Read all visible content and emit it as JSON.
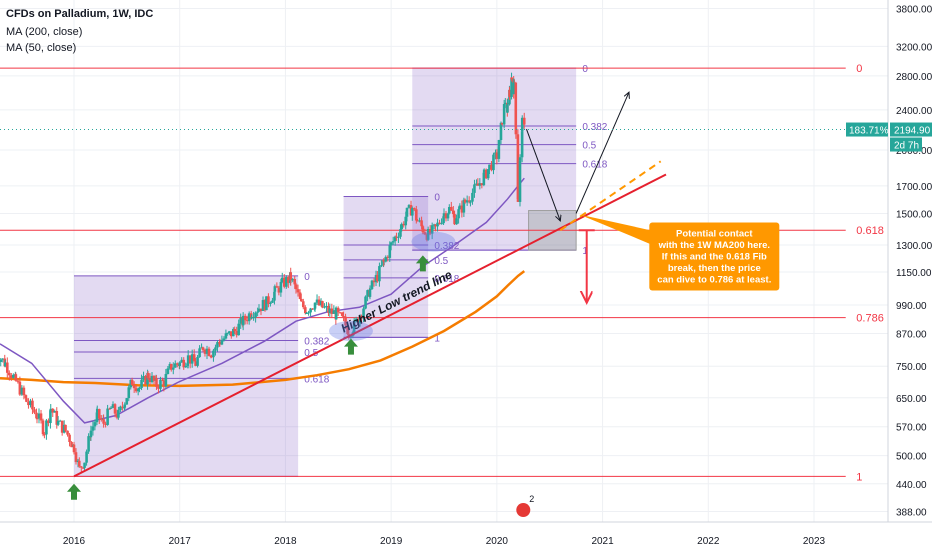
{
  "chart_data": {
    "type": "candlestick",
    "title": "CFDs on Palladium, 1W, IDC",
    "indicators": [
      {
        "name": "MA (200, close)",
        "color": "#f57c00"
      },
      {
        "name": "MA (50, close)",
        "color": "#7e57c2"
      }
    ],
    "y_scale": "log",
    "ylim": [
      370,
      3950
    ],
    "y_ticks": [
      "3800.00",
      "3200.00",
      "2800.00",
      "2400.00",
      "2000.00",
      "1700.00",
      "1500.00",
      "1300.00",
      "1150.00",
      "990.00",
      "870.00",
      "750.00",
      "650.00",
      "570.00",
      "500.00",
      "440.00",
      "388.00"
    ],
    "y_tick_values": [
      3800,
      3200,
      2800,
      2400,
      2000,
      1700,
      1500,
      1300,
      1150,
      990,
      870,
      750,
      650,
      570,
      500,
      440,
      388
    ],
    "x_ticks": [
      "2016",
      "2017",
      "2018",
      "2019",
      "2020",
      "2021",
      "2022",
      "2023"
    ],
    "x_tick_values": [
      2016,
      2017,
      2018,
      2019,
      2020,
      2021,
      2022,
      2023
    ],
    "xlim": [
      2015.3,
      2023.7
    ],
    "last_price": "2194.90",
    "last_change": "183.71%",
    "countdown": "2d 7h",
    "price_path": [
      [
        2015.25,
        800
      ],
      [
        2015.35,
        760
      ],
      [
        2015.45,
        700
      ],
      [
        2015.55,
        640
      ],
      [
        2015.65,
        600
      ],
      [
        2015.72,
        560
      ],
      [
        2015.78,
        620
      ],
      [
        2015.85,
        580
      ],
      [
        2015.92,
        560
      ],
      [
        2016.0,
        520
      ],
      [
        2016.05,
        470
      ],
      [
        2016.1,
        490
      ],
      [
        2016.16,
        560
      ],
      [
        2016.22,
        600
      ],
      [
        2016.28,
        580
      ],
      [
        2016.35,
        620
      ],
      [
        2016.42,
        600
      ],
      [
        2016.48,
        640
      ],
      [
        2016.55,
        700
      ],
      [
        2016.62,
        680
      ],
      [
        2016.7,
        720
      ],
      [
        2016.78,
        690
      ],
      [
        2016.85,
        700
      ],
      [
        2016.92,
        750
      ],
      [
        2017.0,
        760
      ],
      [
        2017.08,
        780
      ],
      [
        2017.15,
        760
      ],
      [
        2017.22,
        820
      ],
      [
        2017.3,
        800
      ],
      [
        2017.38,
        840
      ],
      [
        2017.45,
        860
      ],
      [
        2017.52,
        880
      ],
      [
        2017.6,
        920
      ],
      [
        2017.68,
        960
      ],
      [
        2017.75,
        980
      ],
      [
        2017.82,
        1000
      ],
      [
        2017.9,
        1050
      ],
      [
        2017.97,
        1090
      ],
      [
        2018.05,
        1120
      ],
      [
        2018.1,
        1060
      ],
      [
        2018.15,
        990
      ],
      [
        2018.2,
        970
      ],
      [
        2018.28,
        1000
      ],
      [
        2018.35,
        980
      ],
      [
        2018.42,
        960
      ],
      [
        2018.48,
        950
      ],
      [
        2018.55,
        920
      ],
      [
        2018.6,
        880
      ],
      [
        2018.65,
        900
      ],
      [
        2018.72,
        960
      ],
      [
        2018.8,
        1060
      ],
      [
        2018.87,
        1130
      ],
      [
        2018.93,
        1200
      ],
      [
        2019.0,
        1300
      ],
      [
        2019.05,
        1360
      ],
      [
        2019.1,
        1420
      ],
      [
        2019.15,
        1500
      ],
      [
        2019.2,
        1540
      ],
      [
        2019.25,
        1450
      ],
      [
        2019.3,
        1400
      ],
      [
        2019.35,
        1360
      ],
      [
        2019.42,
        1400
      ],
      [
        2019.5,
        1500
      ],
      [
        2019.55,
        1530
      ],
      [
        2019.6,
        1470
      ],
      [
        2019.65,
        1520
      ],
      [
        2019.7,
        1580
      ],
      [
        2019.75,
        1630
      ],
      [
        2019.82,
        1700
      ],
      [
        2019.88,
        1780
      ],
      [
        2019.93,
        1850
      ],
      [
        2020.0,
        1950
      ],
      [
        2020.02,
        2050
      ],
      [
        2020.05,
        2300
      ],
      [
        2020.08,
        2500
      ],
      [
        2020.1,
        2400
      ],
      [
        2020.12,
        2600
      ],
      [
        2020.14,
        2780
      ],
      [
        2020.16,
        2650
      ],
      [
        2020.18,
        2200
      ],
      [
        2020.2,
        1600
      ],
      [
        2020.22,
        1900
      ],
      [
        2020.24,
        2250
      ],
      [
        2020.26,
        2194.9
      ]
    ],
    "ma200_path": [
      [
        2015.3,
        710
      ],
      [
        2015.6,
        705
      ],
      [
        2015.9,
        698
      ],
      [
        2016.2,
        695
      ],
      [
        2016.6,
        688
      ],
      [
        2017.0,
        686
      ],
      [
        2017.5,
        690
      ],
      [
        2018.0,
        705
      ],
      [
        2018.3,
        720
      ],
      [
        2018.6,
        740
      ],
      [
        2018.9,
        770
      ],
      [
        2019.2,
        820
      ],
      [
        2019.5,
        880
      ],
      [
        2019.8,
        960
      ],
      [
        2020.0,
        1030
      ],
      [
        2020.1,
        1080
      ],
      [
        2020.2,
        1130
      ],
      [
        2020.26,
        1155
      ]
    ],
    "ma50_path": [
      [
        2015.3,
        830
      ],
      [
        2015.6,
        760
      ],
      [
        2015.9,
        640
      ],
      [
        2016.1,
        580
      ],
      [
        2016.4,
        600
      ],
      [
        2016.7,
        650
      ],
      [
        2017.0,
        700
      ],
      [
        2017.4,
        760
      ],
      [
        2017.8,
        840
      ],
      [
        2018.1,
        920
      ],
      [
        2018.4,
        960
      ],
      [
        2018.7,
        980
      ],
      [
        2019.0,
        1040
      ],
      [
        2019.3,
        1180
      ],
      [
        2019.6,
        1300
      ],
      [
        2019.9,
        1440
      ],
      [
        2020.1,
        1600
      ],
      [
        2020.2,
        1700
      ],
      [
        2020.26,
        1760
      ]
    ],
    "horizontal_lines": [
      {
        "price": 2900,
        "label": "0",
        "color": "#f23645"
      },
      {
        "price": 1390,
        "label": "0.618",
        "color": "#f23645"
      },
      {
        "price": 935,
        "label": "0.786",
        "color": "#f23645"
      },
      {
        "price": 455,
        "label": "1",
        "color": "#f23645"
      }
    ],
    "fib_boxes": [
      {
        "x0": 2016.0,
        "x1": 2018.12,
        "p0": 1130,
        "p1": 455,
        "levels": [
          {
            "r": "0",
            "p": 1130
          },
          {
            "r": "0.382",
            "p": 843
          },
          {
            "r": "0.5",
            "p": 800
          },
          {
            "r": "0.618",
            "p": 710
          }
        ]
      },
      {
        "x0": 2018.55,
        "x1": 2019.35,
        "p0": 1620,
        "p1": 855,
        "levels": [
          {
            "r": "0",
            "p": 1620
          },
          {
            "r": "0.382",
            "p": 1300
          },
          {
            "r": "0.5",
            "p": 1215
          },
          {
            "r": "0.618",
            "p": 1120
          },
          {
            "r": "1",
            "p": 855
          }
        ]
      },
      {
        "x0": 2019.2,
        "x1": 2020.75,
        "p0": 2900,
        "p1": 1270,
        "levels": [
          {
            "r": "0",
            "p": 2900
          },
          {
            "r": "0.382",
            "p": 2230
          },
          {
            "r": "0.5",
            "p": 2050
          },
          {
            "r": "0.618",
            "p": 1880
          },
          {
            "r": "1",
            "p": 1270
          }
        ]
      }
    ],
    "fib_visible_labels": [
      {
        "text": "0",
        "x": 2018.15,
        "p": 1130
      },
      {
        "text": "0.382",
        "x": 2018.15,
        "p": 843
      },
      {
        "text": "0.5",
        "x": 2018.15,
        "p": 800
      },
      {
        "text": "0.618",
        "x": 2018.15,
        "p": 710
      },
      {
        "text": "1",
        "x": 2019.38,
        "p": 855
      },
      {
        "text": "0",
        "x": 2019.38,
        "p": 1620
      },
      {
        "text": "0.382",
        "x": 2019.38,
        "p": 1300
      },
      {
        "text": "0.5",
        "x": 2019.38,
        "p": 1215
      },
      {
        "text": "0.618",
        "x": 2019.38,
        "p": 1120
      },
      {
        "text": "0",
        "x": 2020.78,
        "p": 2900
      },
      {
        "text": "0.382",
        "x": 2020.78,
        "p": 2230
      },
      {
        "text": "0.5",
        "x": 2020.78,
        "p": 2050
      },
      {
        "text": "0.618",
        "x": 2020.78,
        "p": 1880
      },
      {
        "text": "1",
        "x": 2020.78,
        "p": 1270
      }
    ],
    "trend_line": {
      "label": "Higher Low trend line",
      "from": [
        2016.0,
        455
      ],
      "to": [
        2021.6,
        1790
      ],
      "color": "#e5202e"
    },
    "trend_extension": {
      "from": [
        2020.6,
        1390
      ],
      "to": [
        2021.55,
        1900
      ],
      "color": "#ff9800"
    },
    "annotation": "Potential contact\nwith the 1W MA200 here.\nIf this and the 0.618 Fib\nbreak, then the price\ncan dive to 0.786 at least.",
    "up_markers": [
      [
        2016.0,
        440
      ],
      [
        2018.62,
        850
      ],
      [
        2019.3,
        1240
      ]
    ],
    "circles": [
      [
        2018.62,
        880
      ],
      [
        2019.4,
        1320
      ]
    ],
    "highlight_box": {
      "x0": 2020.3,
      "x1": 2020.75,
      "p0": 1520,
      "p1": 1270
    },
    "projection_arrows": [
      {
        "from": [
          2020.28,
          2200
        ],
        "to": [
          2020.6,
          1450
        ],
        "color": "#131722"
      },
      {
        "from": [
          2020.75,
          1500
        ],
        "to": [
          2021.25,
          2600
        ],
        "color": "#131722"
      },
      {
        "from": [
          2020.85,
          1390
        ],
        "to": [
          2020.85,
          1000
        ],
        "color": "#f23645"
      }
    ]
  }
}
